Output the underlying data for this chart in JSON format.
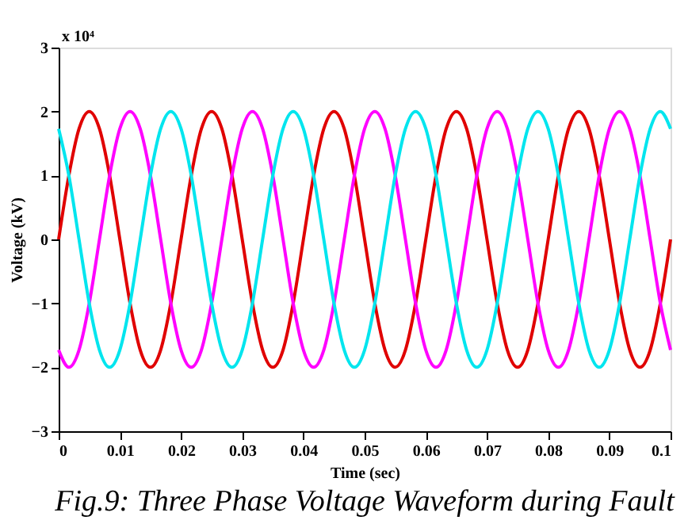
{
  "chart_data": {
    "type": "line",
    "title": "Fig.9: Three Phase Voltage Waveform during Fault",
    "xlabel": "Time (sec)",
    "ylabel": "Voltage (kV)",
    "annotations": [
      "x 10⁴"
    ],
    "x": [
      0,
      0.00167,
      0.00333,
      0.005,
      0.00667,
      0.00833,
      0.01,
      0.01167,
      0.01333,
      0.015,
      0.01667,
      0.01833,
      0.02,
      0.02167,
      0.02333,
      0.025,
      0.02667,
      0.02833,
      0.03,
      0.03167,
      0.03333,
      0.035,
      0.03667,
      0.03833,
      0.04,
      0.04167,
      0.04333,
      0.045,
      0.04667,
      0.04833,
      0.05,
      0.05167,
      0.05333,
      0.055,
      0.05667,
      0.05833,
      0.06,
      0.06167,
      0.06333,
      0.065,
      0.06667,
      0.06833,
      0.07,
      0.07167,
      0.07333,
      0.075,
      0.07667,
      0.07833,
      0.08,
      0.08167,
      0.08333,
      0.085,
      0.08667,
      0.08833,
      0.09,
      0.09167,
      0.09333,
      0.095,
      0.09667,
      0.09833,
      0.1
    ],
    "series": [
      {
        "color": "#e00000",
        "values": [
          0,
          1,
          1.73,
          2,
          1.73,
          1,
          0,
          -1,
          -1.73,
          -2,
          -1.73,
          -1,
          0,
          1,
          1.73,
          2,
          1.73,
          1,
          0,
          -1,
          -1.73,
          -2,
          -1.73,
          -1,
          0,
          1,
          1.73,
          2,
          1.73,
          1,
          0,
          -1,
          -1.73,
          -2,
          -1.73,
          -1,
          0,
          1,
          1.73,
          2,
          1.73,
          1,
          0,
          -1,
          -1.73,
          -2,
          -1.73,
          -1,
          0,
          1,
          1.73,
          2,
          1.73,
          1,
          0,
          -1,
          -1.73,
          -2,
          -1.73,
          -1,
          0
        ]
      },
      {
        "color": "#ff00ff",
        "values": [
          -1.73,
          -2,
          -1.73,
          -1,
          0,
          1,
          1.73,
          2,
          1.73,
          1,
          0,
          -1,
          -1.73,
          -2,
          -1.73,
          -1,
          0,
          1,
          1.73,
          2,
          1.73,
          1,
          0,
          -1,
          -1.73,
          -2,
          -1.73,
          -1,
          0,
          1,
          1.73,
          2,
          1.73,
          1,
          0,
          -1,
          -1.73,
          -2,
          -1.73,
          -1,
          0,
          1,
          1.73,
          2,
          1.73,
          1,
          0,
          -1,
          -1.73,
          -2,
          -1.73,
          -1,
          0,
          1,
          1.73,
          2,
          1.73,
          1,
          0,
          -1,
          -1.73
        ]
      },
      {
        "color": "#00e5ee",
        "values": [
          1.73,
          1,
          0,
          -1,
          -1.73,
          -2,
          -1.73,
          -1,
          0,
          1,
          1.73,
          2,
          1.73,
          1,
          0,
          -1,
          -1.73,
          -2,
          -1.73,
          -1,
          0,
          1,
          1.73,
          2,
          1.73,
          1,
          0,
          -1,
          -1.73,
          -2,
          -1.73,
          -1,
          0,
          1,
          1.73,
          2,
          1.73,
          1,
          0,
          -1,
          -1.73,
          -2,
          -1.73,
          -1,
          0,
          1,
          1.73,
          2,
          1.73,
          1,
          0,
          -1,
          -1.73,
          -2,
          -1.73,
          -1,
          0,
          1,
          1.73,
          2,
          1.73
        ]
      }
    ],
    "xlim": [
      0,
      0.1
    ],
    "xticks": [
      0,
      0.01,
      0.02,
      0.03,
      0.04,
      0.05,
      0.06,
      0.07,
      0.08,
      0.09,
      0.1
    ],
    "ylim": [
      -3,
      3
    ],
    "yticks": [
      -3,
      -2,
      -1,
      0,
      1,
      2,
      3
    ],
    "grid": false,
    "legend": false,
    "marker": "none",
    "line_style": "solid"
  }
}
